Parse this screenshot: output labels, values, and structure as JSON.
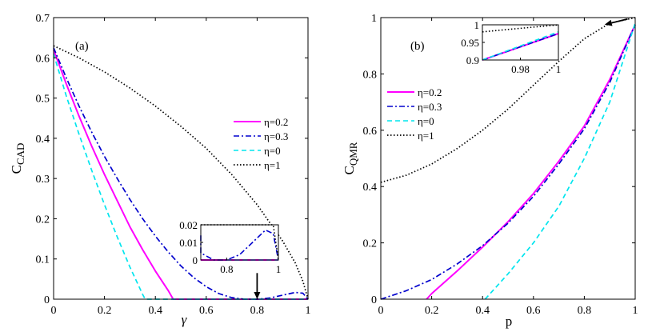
{
  "chart_data": [
    {
      "type": "line",
      "panel_label": "(a)",
      "xlabel": "γ",
      "ylabel_main": "C",
      "ylabel_sub": "CAD",
      "xlim": [
        0,
        1
      ],
      "ylim": [
        0,
        0.7
      ],
      "xticks": [
        "0",
        "0.2",
        "0.4",
        "0.6",
        "0.8",
        "1"
      ],
      "xtick_values": [
        0,
        0.2,
        0.4,
        0.6,
        0.8,
        1
      ],
      "yticks": [
        "0",
        "0.1",
        "0.2",
        "0.3",
        "0.4",
        "0.5",
        "0.6",
        "0.7"
      ],
      "ytick_values": [
        0,
        0.1,
        0.2,
        0.3,
        0.4,
        0.5,
        0.6,
        0.7
      ],
      "series": [
        {
          "name": "η=0.2",
          "color": "#ff00ff",
          "style": "solid",
          "x": [
            0,
            0.05,
            0.1,
            0.15,
            0.2,
            0.25,
            0.3,
            0.35,
            0.4,
            0.45,
            0.47,
            0.5,
            0.6,
            0.7,
            0.8,
            0.9,
            1.0
          ],
          "y": [
            0.62,
            0.535,
            0.455,
            0.38,
            0.31,
            0.245,
            0.18,
            0.123,
            0.07,
            0.022,
            0.0,
            0.0,
            0.0,
            0.0,
            0.0,
            0.0,
            0.0
          ]
        },
        {
          "name": "η=0.3",
          "color": "#0000cd",
          "style": "dashdot",
          "x": [
            0,
            0.05,
            0.1,
            0.15,
            0.2,
            0.25,
            0.3,
            0.35,
            0.4,
            0.45,
            0.5,
            0.55,
            0.6,
            0.65,
            0.7,
            0.75,
            0.8,
            0.85,
            0.9,
            0.95,
            0.98,
            1.0
          ],
          "y": [
            0.625,
            0.55,
            0.48,
            0.415,
            0.355,
            0.3,
            0.248,
            0.2,
            0.157,
            0.118,
            0.083,
            0.054,
            0.031,
            0.014,
            0.004,
            0.0,
            0.0,
            0.003,
            0.01,
            0.017,
            0.015,
            0.0
          ]
        },
        {
          "name": "η=0",
          "color": "#00e5ee",
          "style": "dashed",
          "x": [
            0,
            0.05,
            0.1,
            0.15,
            0.2,
            0.25,
            0.3,
            0.35,
            0.36,
            0.4,
            0.6,
            0.8,
            1.0
          ],
          "y": [
            0.61,
            0.505,
            0.41,
            0.32,
            0.235,
            0.155,
            0.08,
            0.012,
            0.0,
            0.0,
            0.0,
            0.0,
            0.0
          ]
        },
        {
          "name": "η=1",
          "color": "#000000",
          "style": "dotted",
          "x": [
            0,
            0.1,
            0.2,
            0.3,
            0.4,
            0.5,
            0.6,
            0.7,
            0.8,
            0.9,
            0.95,
            0.98,
            1.0
          ],
          "y": [
            0.63,
            0.6,
            0.565,
            0.525,
            0.48,
            0.43,
            0.375,
            0.31,
            0.235,
            0.145,
            0.09,
            0.045,
            0.0
          ]
        }
      ],
      "inset": {
        "xlim": [
          0.7,
          1.0
        ],
        "ylim": [
          0,
          0.02
        ],
        "xticks": [
          "0.8",
          "1"
        ],
        "xtick_values": [
          0.8,
          1.0
        ],
        "yticks": [
          "0",
          "0.01",
          "0.02"
        ],
        "ytick_values": [
          0,
          0.01,
          0.02
        ]
      },
      "arrow": {
        "from": [
          0.8,
          0.065
        ],
        "to": [
          0.8,
          0.0
        ]
      }
    },
    {
      "type": "line",
      "panel_label": "(b)",
      "xlabel": "p",
      "ylabel_main": "C",
      "ylabel_sub": "QMR",
      "xlim": [
        0,
        1
      ],
      "ylim": [
        0,
        1
      ],
      "xticks": [
        "0",
        "0.2",
        "0.4",
        "0.6",
        "0.8",
        "1"
      ],
      "xtick_values": [
        0,
        0.2,
        0.4,
        0.6,
        0.8,
        1
      ],
      "yticks": [
        "0",
        "0.2",
        "0.4",
        "0.6",
        "0.8",
        "1"
      ],
      "ytick_values": [
        0,
        0.2,
        0.4,
        0.6,
        0.8,
        1
      ],
      "series": [
        {
          "name": "η=0.2",
          "color": "#ff00ff",
          "style": "solid",
          "x": [
            0.18,
            0.2,
            0.3,
            0.4,
            0.5,
            0.6,
            0.7,
            0.8,
            0.9,
            1.0
          ],
          "y": [
            0.0,
            0.02,
            0.1,
            0.185,
            0.275,
            0.375,
            0.49,
            0.615,
            0.78,
            0.975
          ]
        },
        {
          "name": "η=0.3",
          "color": "#0000cd",
          "style": "dashdot",
          "x": [
            0,
            0.1,
            0.2,
            0.3,
            0.4,
            0.5,
            0.6,
            0.7,
            0.8,
            0.9,
            1.0
          ],
          "y": [
            0.0,
            0.03,
            0.07,
            0.125,
            0.19,
            0.27,
            0.365,
            0.48,
            0.605,
            0.77,
            0.975
          ]
        },
        {
          "name": "η=0",
          "color": "#00e5ee",
          "style": "dashed",
          "x": [
            0.41,
            0.5,
            0.6,
            0.7,
            0.8,
            0.9,
            1.0
          ],
          "y": [
            0.0,
            0.09,
            0.2,
            0.33,
            0.5,
            0.7,
            0.98
          ]
        },
        {
          "name": "η=1",
          "color": "#000000",
          "style": "dotted",
          "x": [
            0,
            0.1,
            0.2,
            0.3,
            0.4,
            0.5,
            0.6,
            0.7,
            0.8,
            0.9,
            1.0
          ],
          "y": [
            0.415,
            0.44,
            0.48,
            0.535,
            0.6,
            0.675,
            0.76,
            0.845,
            0.925,
            0.98,
            1.0
          ]
        }
      ],
      "inset": {
        "xlim": [
          0.96,
          1.0
        ],
        "ylim": [
          0.9,
          1.0
        ],
        "xticks": [
          "0.98",
          "1"
        ],
        "xtick_values": [
          0.98,
          1.0
        ],
        "yticks": [
          "0.9",
          "0.95",
          "1"
        ],
        "ytick_values": [
          0.9,
          0.95,
          1.0
        ]
      },
      "arrow": {
        "from": [
          0.97,
          0.995
        ],
        "to": [
          0.88,
          0.975
        ]
      }
    }
  ]
}
